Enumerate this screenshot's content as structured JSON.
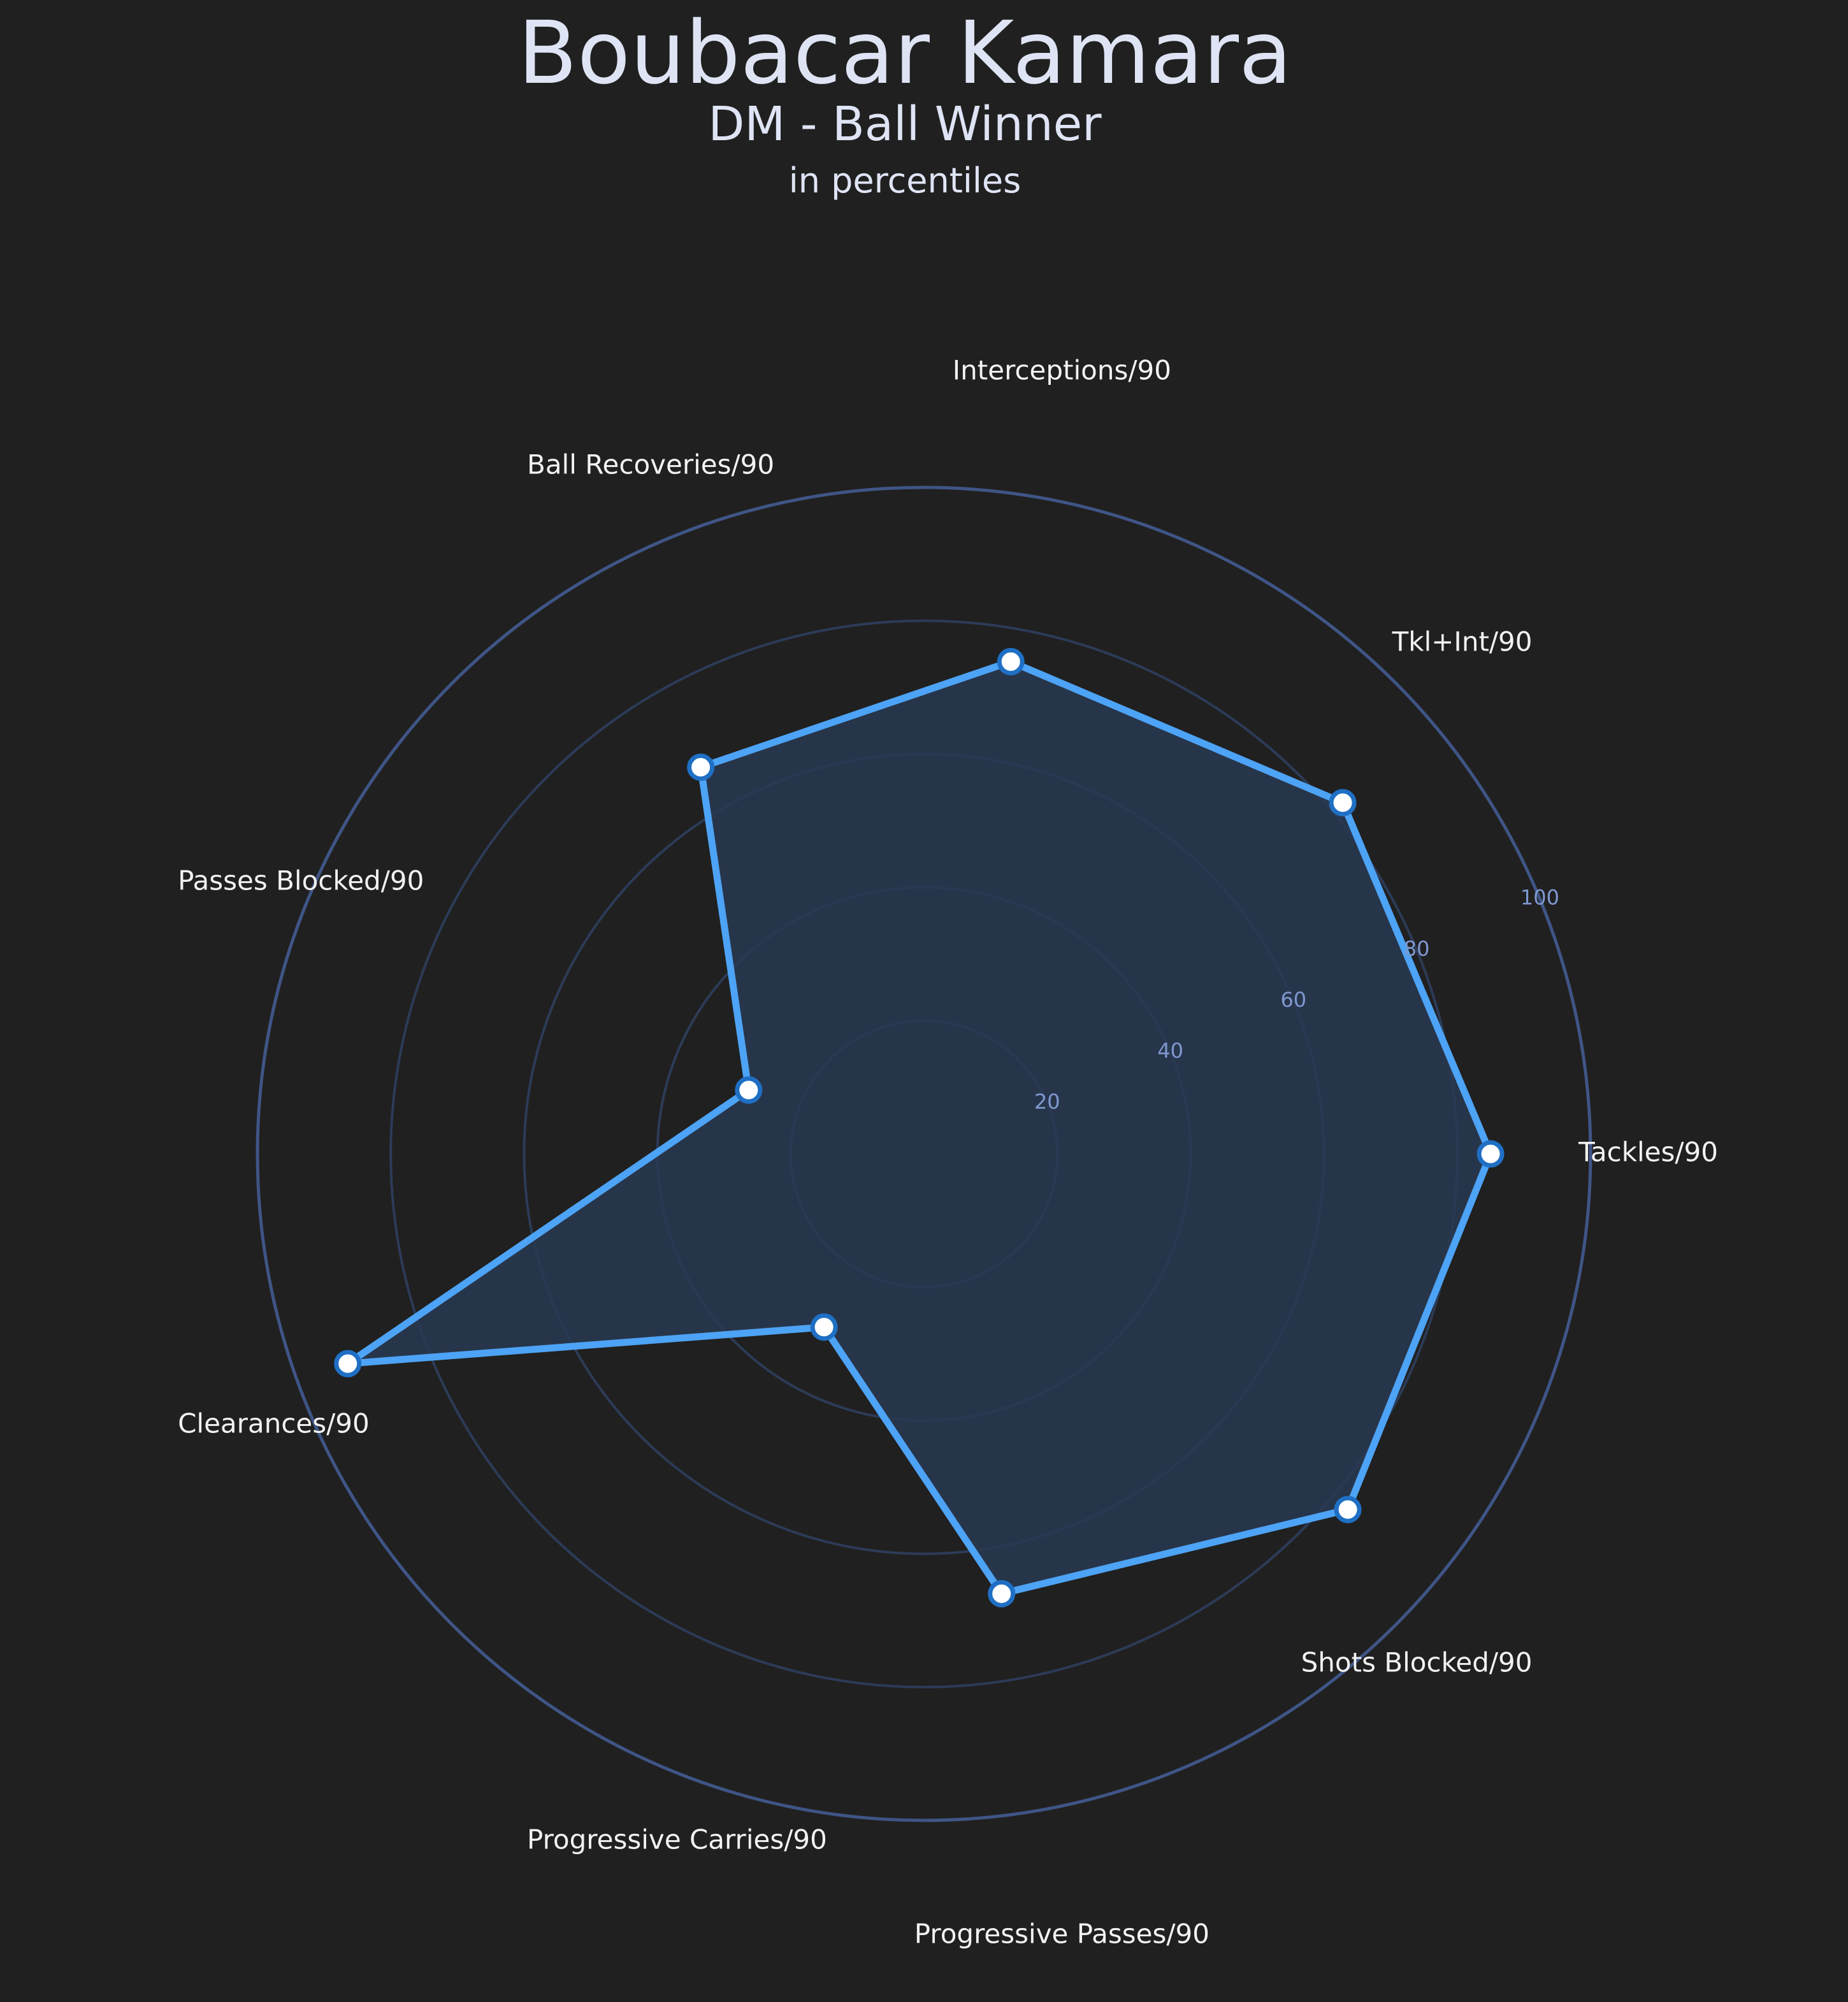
{
  "chart_data": {
    "type": "radar",
    "title": "Boubacar Kamara",
    "subtitle": "DM - Ball Winner",
    "caption": "in percentiles",
    "categories": [
      "Tackles/90",
      "Tkl+Int/90",
      "Interceptions/90",
      "Ball Recoveries/90",
      "Passes Blocked/90",
      "Clearances/90",
      "Progressive Carries/90",
      "Progressive Passes/90",
      "Shots Blocked/90"
    ],
    "values": [
      85,
      82,
      75,
      67,
      28,
      92,
      30,
      67,
      83
    ],
    "rlim": [
      0,
      100
    ],
    "radial_ticks": [
      20,
      40,
      60,
      80,
      100
    ],
    "grid": true,
    "colors": {
      "background": "#202020",
      "line": "#4da3f5",
      "fill": "#293a52",
      "grid": "#2c3b57",
      "outer_ring": "#3f5586",
      "tick_label": "#7f98cf",
      "marker_fill": "#ffffff",
      "marker_edge": "#1f6fc4"
    }
  }
}
